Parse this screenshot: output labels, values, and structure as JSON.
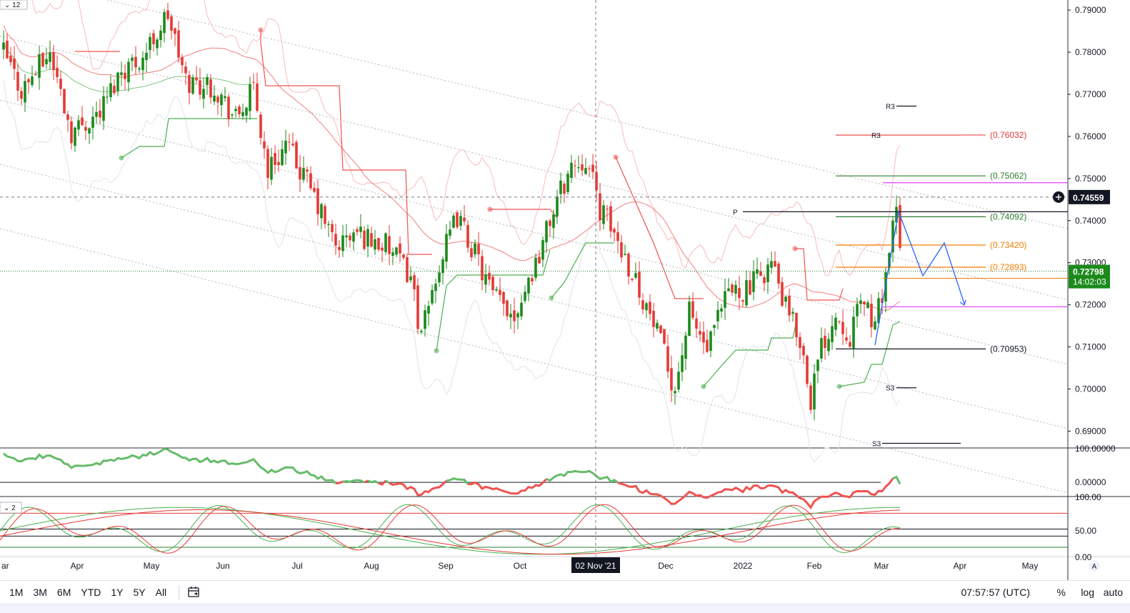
{
  "chart_data": [
    {
      "type": "candlestick",
      "title": "",
      "interval_badge": "12",
      "y_ticks": [
        "0.79000",
        "0.78000",
        "0.77000",
        "0.76000",
        "0.75000",
        "0.74000",
        "0.73000",
        "0.72000",
        "0.71000",
        "0.70000",
        "0.69000"
      ],
      "ylim": [
        0.686,
        0.7924
      ],
      "x_ticks": [
        "ar",
        "Apr",
        "May",
        "Jun",
        "Jul",
        "Aug",
        "Sep",
        "Oct",
        "Nov",
        "Dec",
        "2022",
        "Feb",
        "Mar",
        "Apr",
        "May"
      ],
      "crosshair_date": "02 Nov '21",
      "crosshair_price": "0.74559",
      "last_price": "0.72798",
      "countdown": "14:02:03",
      "levels": [
        {
          "label": "R3",
          "value": 0.7672,
          "color": "#131722"
        },
        {
          "label": "R3",
          "value": 0.76032,
          "color": "#e53935",
          "tag": "(0.76032)"
        },
        {
          "label": "",
          "value": 0.75062,
          "color": "#2e7d32",
          "tag": "(0.75062)"
        },
        {
          "label": "",
          "value": 0.749,
          "color": "#e040fb",
          "tag": ""
        },
        {
          "label": "P",
          "value": 0.74211,
          "color": "#131722",
          "tag": ""
        },
        {
          "label": "",
          "value": 0.74092,
          "color": "#2e7d32",
          "tag": "(0.74092)"
        },
        {
          "label": "",
          "value": 0.7342,
          "color": "#f57c00",
          "tag": "(0.73420)"
        },
        {
          "label": "",
          "value": 0.72893,
          "color": "#f57c00",
          "tag": "(0.72893)"
        },
        {
          "label": "",
          "value": 0.71953,
          "color": "#e040fb",
          "tag": ""
        },
        {
          "label": "",
          "value": 0.70953,
          "color": "#131722",
          "tag": "(0.70953)"
        },
        {
          "label": "S3",
          "value": 0.7003,
          "color": "#131722",
          "tag": ""
        },
        {
          "label": "S3",
          "value": 0.6871,
          "color": "#131722",
          "tag": ""
        }
      ],
      "colors": {
        "up": "#26a69a",
        "up_body": "#1b8a1b",
        "down": "#e53935",
        "grid": "#f0f3fa",
        "ma_red": "#ef5350",
        "ma_green": "#4caf50",
        "projection": "#2962ff"
      }
    },
    {
      "type": "line",
      "title": "",
      "y_ticks": [
        "100.00000",
        "0.00000"
      ],
      "ylim": [
        -40,
        100
      ],
      "series_colors": [
        "#66bb6a",
        "#ef5350"
      ]
    },
    {
      "type": "line",
      "title": "",
      "interval_badge": "2",
      "y_ticks": [
        "100.00",
        "50.00",
        "0.00"
      ],
      "ylim": [
        0,
        100
      ],
      "series_colors": [
        "#4caf50",
        "#e53935"
      ]
    }
  ],
  "toolbar": {
    "timeframes": [
      "1M",
      "3M",
      "6M",
      "YTD",
      "1Y",
      "5Y",
      "All"
    ],
    "calendar_icon": "calendar-range-icon",
    "clock": "07:57:57 (UTC)",
    "percent": "%",
    "log": "log",
    "auto": "auto",
    "auto_badge": "A"
  },
  "price_scale_labels": {
    "cross_price": "0.74559",
    "last_price": "0.72798",
    "countdown": "14:02:03"
  }
}
